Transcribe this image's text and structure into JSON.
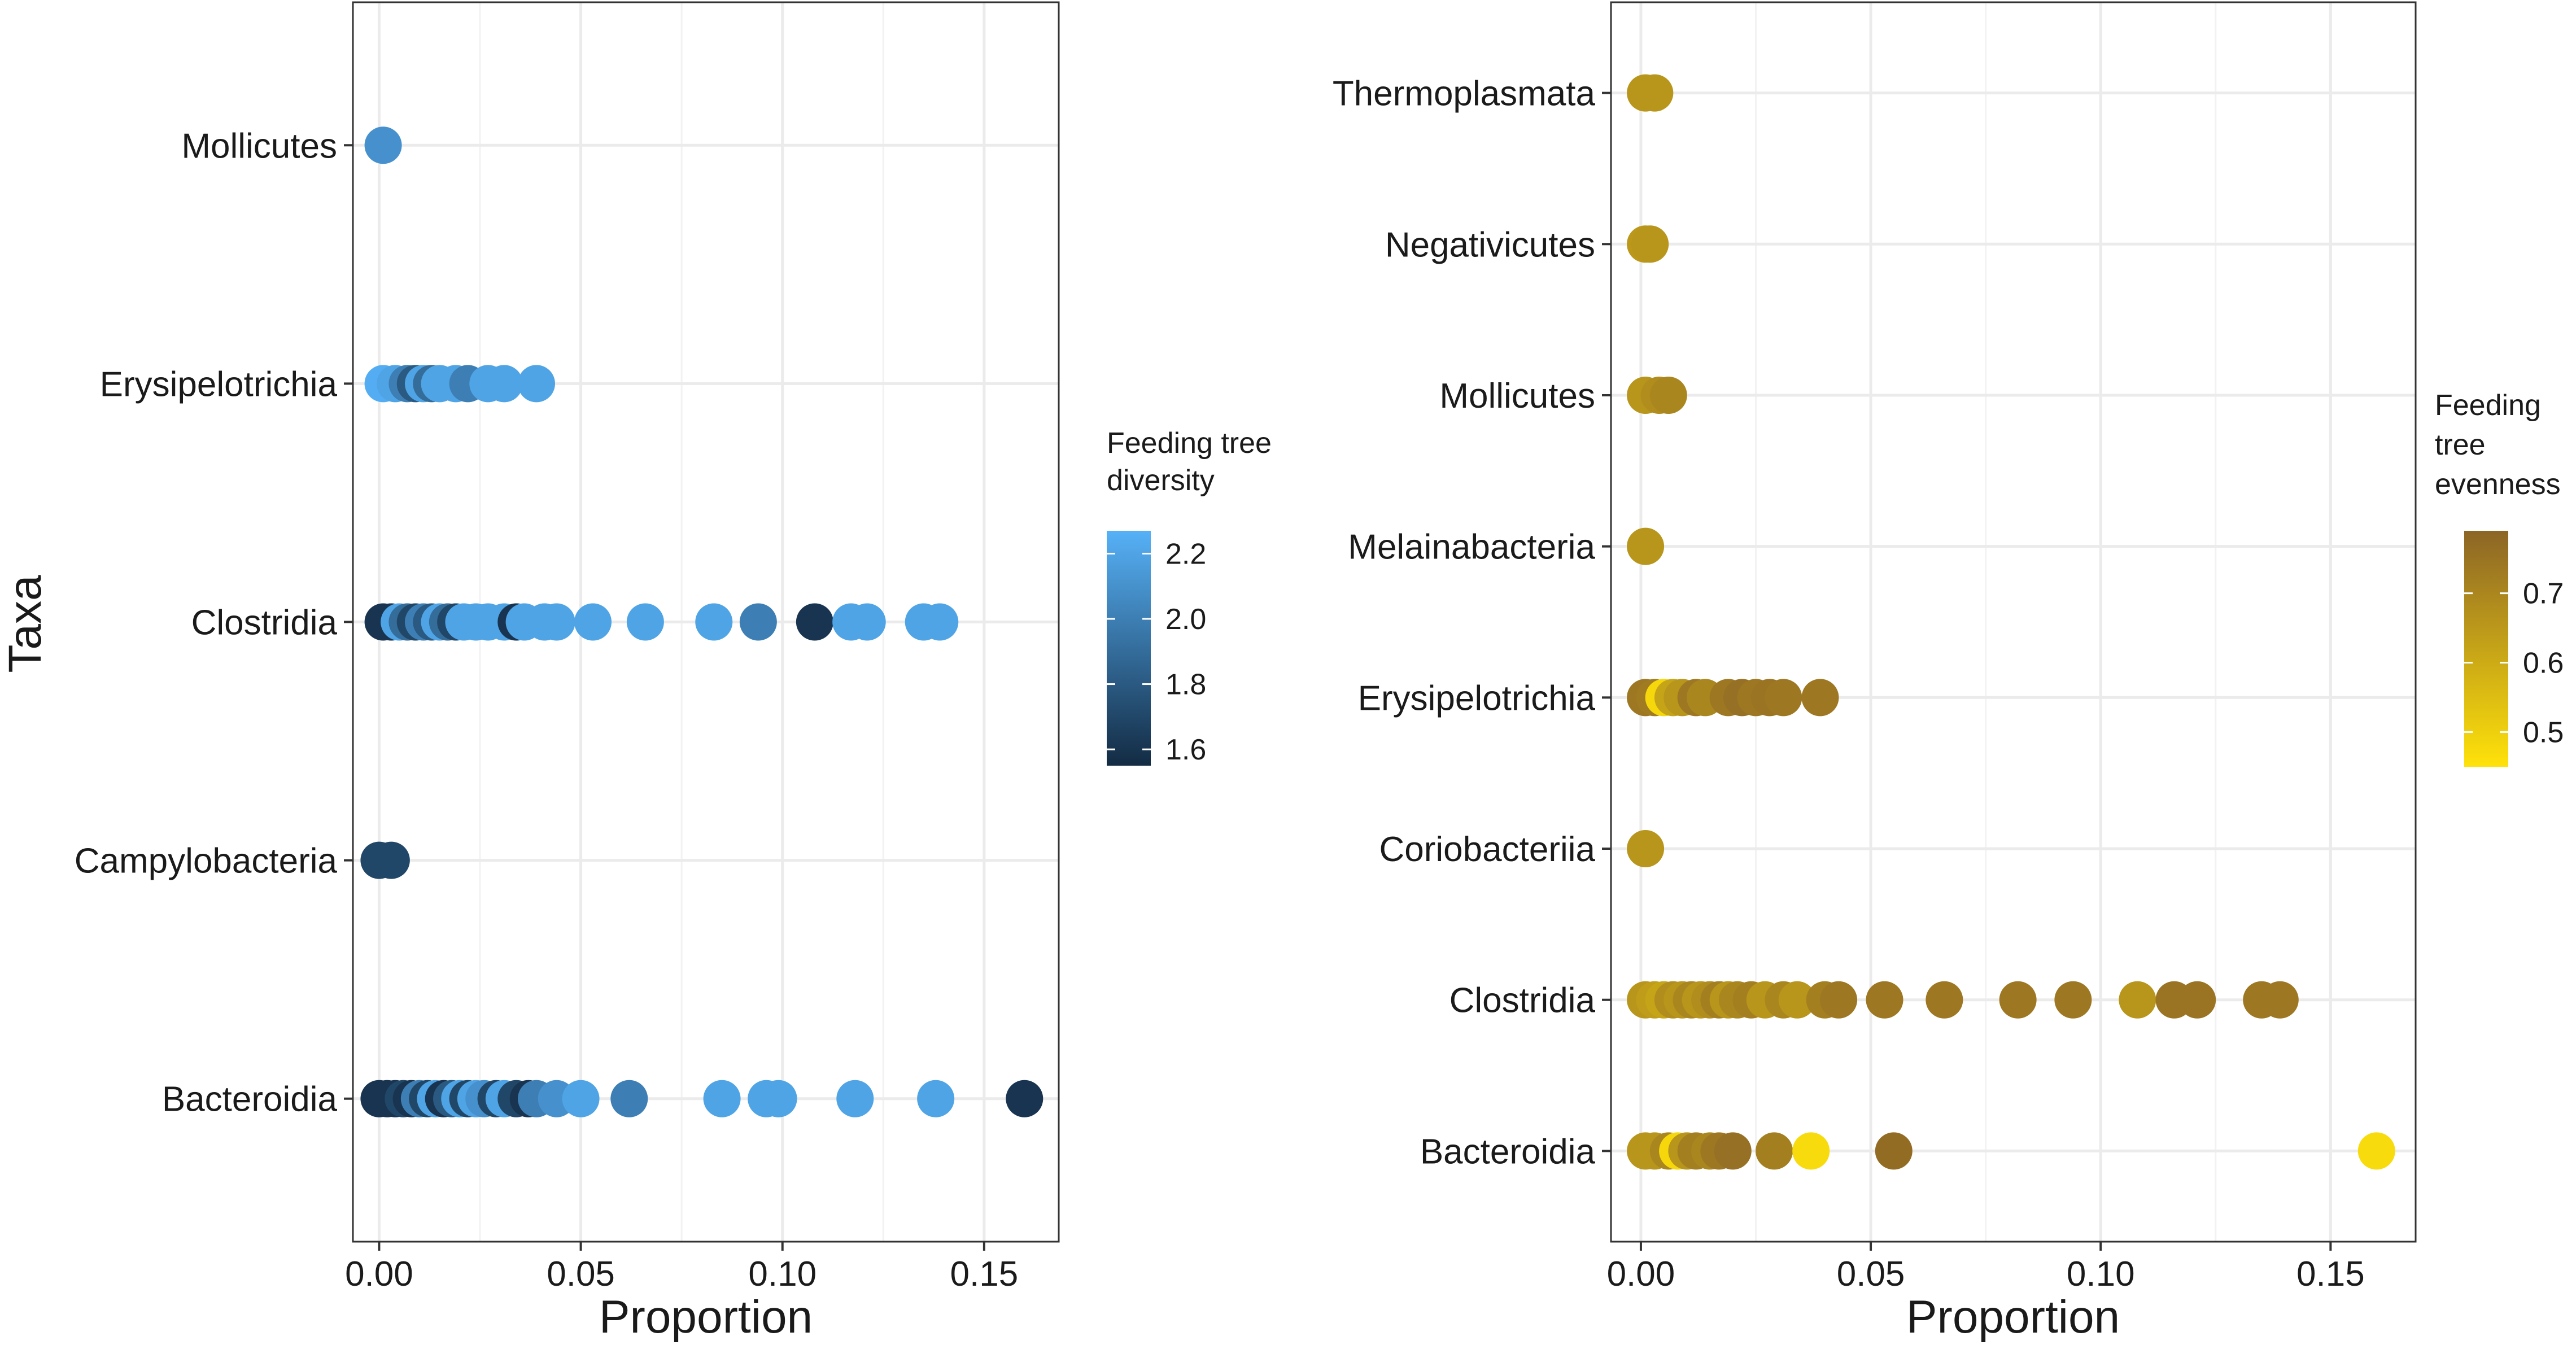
{
  "chart_data": [
    {
      "type": "scatter",
      "panel": "left",
      "title": "",
      "xlabel": "Proportion",
      "ylabel": "Taxa",
      "xlim": [
        -0.0065,
        0.1685
      ],
      "xticks": [
        "0.00",
        "0.05",
        "0.10",
        "0.15"
      ],
      "xtick_values": [
        0,
        0.05,
        0.1,
        0.15
      ],
      "grid": true,
      "categories": [
        "Bacteroidia",
        "Campylobacteria",
        "Clostridia",
        "Erysipelotrichia",
        "Mollicutes"
      ],
      "color_scale": {
        "title_lines": [
          "Feeding tree",
          "diversity"
        ],
        "min": 1.55,
        "max": 2.27,
        "low_color": "#132B43",
        "high_color": "#56B1F7",
        "ticks": [
          1.6,
          1.8,
          2.0,
          2.2
        ],
        "tick_labels": [
          "1.6",
          "1.8",
          "2.0",
          "2.2"
        ]
      },
      "points": [
        {
          "taxon": "Mollicutes",
          "x": 0.001,
          "c": 2.1
        },
        {
          "taxon": "Erysipelotrichia",
          "x": 0.001,
          "c": 2.25
        },
        {
          "taxon": "Erysipelotrichia",
          "x": 0.004,
          "c": 2.2
        },
        {
          "taxon": "Erysipelotrichia",
          "x": 0.007,
          "c": 2.0
        },
        {
          "taxon": "Erysipelotrichia",
          "x": 0.009,
          "c": 1.8
        },
        {
          "taxon": "Erysipelotrichia",
          "x": 0.011,
          "c": 2.2
        },
        {
          "taxon": "Erysipelotrichia",
          "x": 0.013,
          "c": 1.9
        },
        {
          "taxon": "Erysipelotrichia",
          "x": 0.015,
          "c": 2.2
        },
        {
          "taxon": "Erysipelotrichia",
          "x": 0.019,
          "c": 2.2
        },
        {
          "taxon": "Erysipelotrichia",
          "x": 0.022,
          "c": 2.0
        },
        {
          "taxon": "Erysipelotrichia",
          "x": 0.027,
          "c": 2.2
        },
        {
          "taxon": "Erysipelotrichia",
          "x": 0.031,
          "c": 2.2
        },
        {
          "taxon": "Erysipelotrichia",
          "x": 0.039,
          "c": 2.2
        },
        {
          "taxon": "Clostridia",
          "x": 0.001,
          "c": 1.6
        },
        {
          "taxon": "Clostridia",
          "x": 0.003,
          "c": 1.6
        },
        {
          "taxon": "Clostridia",
          "x": 0.005,
          "c": 2.2
        },
        {
          "taxon": "Clostridia",
          "x": 0.007,
          "c": 1.9
        },
        {
          "taxon": "Clostridia",
          "x": 0.009,
          "c": 1.7
        },
        {
          "taxon": "Clostridia",
          "x": 0.011,
          "c": 2.0
        },
        {
          "taxon": "Clostridia",
          "x": 0.013,
          "c": 1.8
        },
        {
          "taxon": "Clostridia",
          "x": 0.015,
          "c": 2.2
        },
        {
          "taxon": "Clostridia",
          "x": 0.017,
          "c": 1.9
        },
        {
          "taxon": "Clostridia",
          "x": 0.019,
          "c": 1.7
        },
        {
          "taxon": "Clostridia",
          "x": 0.021,
          "c": 2.2
        },
        {
          "taxon": "Clostridia",
          "x": 0.024,
          "c": 2.2
        },
        {
          "taxon": "Clostridia",
          "x": 0.027,
          "c": 2.2
        },
        {
          "taxon": "Clostridia",
          "x": 0.031,
          "c": 2.2
        },
        {
          "taxon": "Clostridia",
          "x": 0.034,
          "c": 1.6
        },
        {
          "taxon": "Clostridia",
          "x": 0.036,
          "c": 2.2
        },
        {
          "taxon": "Clostridia",
          "x": 0.041,
          "c": 2.2
        },
        {
          "taxon": "Clostridia",
          "x": 0.044,
          "c": 2.2
        },
        {
          "taxon": "Clostridia",
          "x": 0.053,
          "c": 2.2
        },
        {
          "taxon": "Clostridia",
          "x": 0.066,
          "c": 2.2
        },
        {
          "taxon": "Clostridia",
          "x": 0.083,
          "c": 2.2
        },
        {
          "taxon": "Clostridia",
          "x": 0.094,
          "c": 2.0
        },
        {
          "taxon": "Clostridia",
          "x": 0.108,
          "c": 1.6
        },
        {
          "taxon": "Clostridia",
          "x": 0.117,
          "c": 2.2
        },
        {
          "taxon": "Clostridia",
          "x": 0.121,
          "c": 2.2
        },
        {
          "taxon": "Clostridia",
          "x": 0.135,
          "c": 2.2
        },
        {
          "taxon": "Clostridia",
          "x": 0.139,
          "c": 2.2
        },
        {
          "taxon": "Campylobacteria",
          "x": 0.0,
          "c": 1.7
        },
        {
          "taxon": "Campylobacteria",
          "x": 0.003,
          "c": 1.7
        },
        {
          "taxon": "Bacteroidia",
          "x": 0.0,
          "c": 1.6
        },
        {
          "taxon": "Bacteroidia",
          "x": 0.002,
          "c": 1.6
        },
        {
          "taxon": "Bacteroidia",
          "x": 0.004,
          "c": 1.6
        },
        {
          "taxon": "Bacteroidia",
          "x": 0.006,
          "c": 1.7
        },
        {
          "taxon": "Bacteroidia",
          "x": 0.008,
          "c": 1.6
        },
        {
          "taxon": "Bacteroidia",
          "x": 0.01,
          "c": 2.0
        },
        {
          "taxon": "Bacteroidia",
          "x": 0.012,
          "c": 1.7
        },
        {
          "taxon": "Bacteroidia",
          "x": 0.014,
          "c": 2.2
        },
        {
          "taxon": "Bacteroidia",
          "x": 0.016,
          "c": 1.6
        },
        {
          "taxon": "Bacteroidia",
          "x": 0.018,
          "c": 1.8
        },
        {
          "taxon": "Bacteroidia",
          "x": 0.02,
          "c": 2.2
        },
        {
          "taxon": "Bacteroidia",
          "x": 0.022,
          "c": 1.7
        },
        {
          "taxon": "Bacteroidia",
          "x": 0.024,
          "c": 2.2
        },
        {
          "taxon": "Bacteroidia",
          "x": 0.026,
          "c": 2.1
        },
        {
          "taxon": "Bacteroidia",
          "x": 0.029,
          "c": 1.7
        },
        {
          "taxon": "Bacteroidia",
          "x": 0.031,
          "c": 2.2
        },
        {
          "taxon": "Bacteroidia",
          "x": 0.034,
          "c": 1.7
        },
        {
          "taxon": "Bacteroidia",
          "x": 0.037,
          "c": 1.6
        },
        {
          "taxon": "Bacteroidia",
          "x": 0.039,
          "c": 2.0
        },
        {
          "taxon": "Bacteroidia",
          "x": 0.044,
          "c": 2.1
        },
        {
          "taxon": "Bacteroidia",
          "x": 0.05,
          "c": 2.2
        },
        {
          "taxon": "Bacteroidia",
          "x": 0.062,
          "c": 2.0
        },
        {
          "taxon": "Bacteroidia",
          "x": 0.085,
          "c": 2.2
        },
        {
          "taxon": "Bacteroidia",
          "x": 0.096,
          "c": 2.2
        },
        {
          "taxon": "Bacteroidia",
          "x": 0.099,
          "c": 2.2
        },
        {
          "taxon": "Bacteroidia",
          "x": 0.118,
          "c": 2.2
        },
        {
          "taxon": "Bacteroidia",
          "x": 0.138,
          "c": 2.2
        },
        {
          "taxon": "Bacteroidia",
          "x": 0.16,
          "c": 1.6
        }
      ]
    },
    {
      "type": "scatter",
      "panel": "right",
      "title": "",
      "xlabel": "Proportion",
      "ylabel": "",
      "xlim": [
        -0.0065,
        0.1685
      ],
      "xticks": [
        "0.00",
        "0.05",
        "0.10",
        "0.15"
      ],
      "xtick_values": [
        0,
        0.05,
        0.1,
        0.15
      ],
      "grid": true,
      "categories": [
        "Bacteroidia",
        "Clostridia",
        "Coriobacteriia",
        "Erysipelotrichia",
        "Melainabacteria",
        "Mollicutes",
        "Negativicutes",
        "Thermoplasmata"
      ],
      "color_scale": {
        "title_lines": [
          "Feeding",
          "tree",
          "evenness"
        ],
        "min": 0.45,
        "max": 0.79,
        "low_color": "#FFE20A",
        "high_color": "#8C6526",
        "ticks": [
          0.5,
          0.6,
          0.7
        ],
        "tick_labels": [
          "0.5",
          "0.6",
          "0.7"
        ]
      },
      "points": [
        {
          "taxon": "Thermoplasmata",
          "x": 0.001,
          "c": 0.66
        },
        {
          "taxon": "Thermoplasmata",
          "x": 0.003,
          "c": 0.66
        },
        {
          "taxon": "Negativicutes",
          "x": 0.001,
          "c": 0.65
        },
        {
          "taxon": "Negativicutes",
          "x": 0.002,
          "c": 0.66
        },
        {
          "taxon": "Mollicutes",
          "x": 0.001,
          "c": 0.66
        },
        {
          "taxon": "Mollicutes",
          "x": 0.004,
          "c": 0.68
        },
        {
          "taxon": "Mollicutes",
          "x": 0.006,
          "c": 0.7
        },
        {
          "taxon": "Melainabacteria",
          "x": 0.001,
          "c": 0.66
        },
        {
          "taxon": "Erysipelotrichia",
          "x": 0.001,
          "c": 0.74
        },
        {
          "taxon": "Erysipelotrichia",
          "x": 0.003,
          "c": 0.73
        },
        {
          "taxon": "Erysipelotrichia",
          "x": 0.005,
          "c": 0.48
        },
        {
          "taxon": "Erysipelotrichia",
          "x": 0.007,
          "c": 0.62
        },
        {
          "taxon": "Erysipelotrichia",
          "x": 0.009,
          "c": 0.66
        },
        {
          "taxon": "Erysipelotrichia",
          "x": 0.012,
          "c": 0.74
        },
        {
          "taxon": "Erysipelotrichia",
          "x": 0.014,
          "c": 0.7
        },
        {
          "taxon": "Erysipelotrichia",
          "x": 0.019,
          "c": 0.74
        },
        {
          "taxon": "Erysipelotrichia",
          "x": 0.022,
          "c": 0.76
        },
        {
          "taxon": "Erysipelotrichia",
          "x": 0.025,
          "c": 0.74
        },
        {
          "taxon": "Erysipelotrichia",
          "x": 0.028,
          "c": 0.75
        },
        {
          "taxon": "Erysipelotrichia",
          "x": 0.031,
          "c": 0.74
        },
        {
          "taxon": "Erysipelotrichia",
          "x": 0.039,
          "c": 0.74
        },
        {
          "taxon": "Coriobacteriia",
          "x": 0.001,
          "c": 0.66
        },
        {
          "taxon": "Clostridia",
          "x": 0.001,
          "c": 0.66
        },
        {
          "taxon": "Clostridia",
          "x": 0.003,
          "c": 0.64
        },
        {
          "taxon": "Clostridia",
          "x": 0.005,
          "c": 0.62
        },
        {
          "taxon": "Clostridia",
          "x": 0.007,
          "c": 0.68
        },
        {
          "taxon": "Clostridia",
          "x": 0.009,
          "c": 0.66
        },
        {
          "taxon": "Clostridia",
          "x": 0.011,
          "c": 0.7
        },
        {
          "taxon": "Clostridia",
          "x": 0.013,
          "c": 0.66
        },
        {
          "taxon": "Clostridia",
          "x": 0.015,
          "c": 0.68
        },
        {
          "taxon": "Clostridia",
          "x": 0.017,
          "c": 0.72
        },
        {
          "taxon": "Clostridia",
          "x": 0.019,
          "c": 0.66
        },
        {
          "taxon": "Clostridia",
          "x": 0.021,
          "c": 0.7
        },
        {
          "taxon": "Clostridia",
          "x": 0.024,
          "c": 0.72
        },
        {
          "taxon": "Clostridia",
          "x": 0.027,
          "c": 0.66
        },
        {
          "taxon": "Clostridia",
          "x": 0.031,
          "c": 0.7
        },
        {
          "taxon": "Clostridia",
          "x": 0.034,
          "c": 0.66
        },
        {
          "taxon": "Clostridia",
          "x": 0.04,
          "c": 0.72
        },
        {
          "taxon": "Clostridia",
          "x": 0.043,
          "c": 0.74
        },
        {
          "taxon": "Clostridia",
          "x": 0.053,
          "c": 0.74
        },
        {
          "taxon": "Clostridia",
          "x": 0.066,
          "c": 0.74
        },
        {
          "taxon": "Clostridia",
          "x": 0.082,
          "c": 0.74
        },
        {
          "taxon": "Clostridia",
          "x": 0.094,
          "c": 0.74
        },
        {
          "taxon": "Clostridia",
          "x": 0.108,
          "c": 0.66
        },
        {
          "taxon": "Clostridia",
          "x": 0.116,
          "c": 0.75
        },
        {
          "taxon": "Clostridia",
          "x": 0.121,
          "c": 0.75
        },
        {
          "taxon": "Clostridia",
          "x": 0.135,
          "c": 0.74
        },
        {
          "taxon": "Clostridia",
          "x": 0.139,
          "c": 0.74
        },
        {
          "taxon": "Bacteroidia",
          "x": 0.001,
          "c": 0.66
        },
        {
          "taxon": "Bacteroidia",
          "x": 0.003,
          "c": 0.66
        },
        {
          "taxon": "Bacteroidia",
          "x": 0.006,
          "c": 0.7
        },
        {
          "taxon": "Bacteroidia",
          "x": 0.008,
          "c": 0.48
        },
        {
          "taxon": "Bacteroidia",
          "x": 0.01,
          "c": 0.66
        },
        {
          "taxon": "Bacteroidia",
          "x": 0.012,
          "c": 0.72
        },
        {
          "taxon": "Bacteroidia",
          "x": 0.015,
          "c": 0.7
        },
        {
          "taxon": "Bacteroidia",
          "x": 0.017,
          "c": 0.74
        },
        {
          "taxon": "Bacteroidia",
          "x": 0.02,
          "c": 0.76
        },
        {
          "taxon": "Bacteroidia",
          "x": 0.029,
          "c": 0.72
        },
        {
          "taxon": "Bacteroidia",
          "x": 0.037,
          "c": 0.47
        },
        {
          "taxon": "Bacteroidia",
          "x": 0.055,
          "c": 0.77
        },
        {
          "taxon": "Bacteroidia",
          "x": 0.16,
          "c": 0.47
        }
      ]
    }
  ]
}
